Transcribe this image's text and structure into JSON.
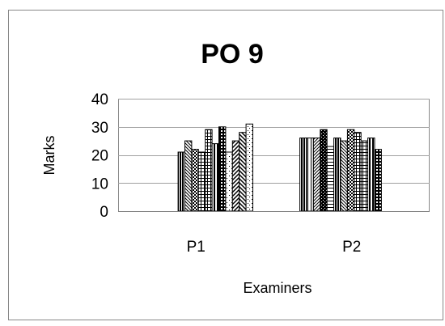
{
  "chart_data": {
    "type": "bar",
    "title": "PO 9",
    "xlabel": "Examiners",
    "ylabel": "Marks",
    "ylim": [
      0,
      40
    ],
    "yticks": [
      0,
      10,
      20,
      30,
      40
    ],
    "grid": true,
    "legend": "none",
    "categories": [
      "P1",
      "P2"
    ],
    "series": [
      {
        "values": [
          0,
          26
        ]
      },
      {
        "values": [
          0,
          26
        ]
      },
      {
        "values": [
          0,
          26
        ]
      },
      {
        "values": [
          0,
          29
        ]
      },
      {
        "values": [
          0,
          23
        ]
      },
      {
        "values": [
          21,
          26
        ]
      },
      {
        "values": [
          25,
          25
        ]
      },
      {
        "values": [
          22,
          29
        ]
      },
      {
        "values": [
          21,
          28
        ]
      },
      {
        "values": [
          29,
          25
        ]
      },
      {
        "values": [
          24,
          26
        ]
      },
      {
        "values": [
          30,
          22
        ]
      },
      {
        "values": [
          21,
          0
        ]
      },
      {
        "values": [
          25,
          0
        ]
      },
      {
        "values": [
          28,
          0
        ]
      },
      {
        "values": [
          31,
          0
        ]
      }
    ]
  }
}
